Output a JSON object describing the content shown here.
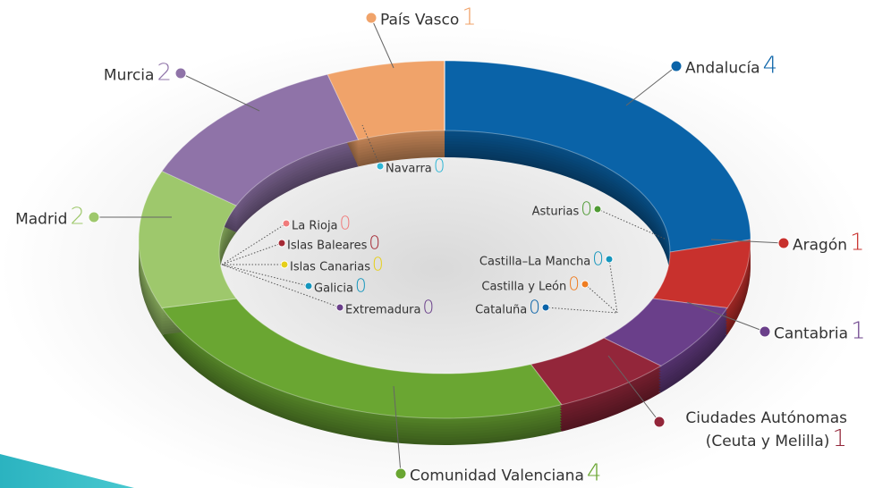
{
  "chart_data": {
    "type": "pie",
    "categories": [
      "Andalucía",
      "Aragón",
      "Cantabria",
      "Ciudades Autónomas (Ceuta y Melilla)",
      "Comunidad Valenciana",
      "Madrid",
      "Murcia",
      "País Vasco",
      "Navarra",
      "Asturias",
      "Castilla–La Mancha",
      "Castilla y León",
      "Cataluña",
      "La Rioja",
      "Islas Baleares",
      "Islas Canarias",
      "Galicia",
      "Extremadura"
    ],
    "values": [
      4,
      1,
      1,
      1,
      4,
      2,
      2,
      1,
      0,
      0,
      0,
      0,
      0,
      0,
      0,
      0,
      0,
      0
    ],
    "colors": [
      "#0a63a8",
      "#c8312d",
      "#6a3f8a",
      "#93263a",
      "#6aa632",
      "#9ec86c",
      "#8f73a8",
      "#f0a36a",
      "#2fb7d6",
      "#4f9a34",
      "#1596bd",
      "#ef7d22",
      "#0a63a8",
      "#f07b7b",
      "#a52a35",
      "#e6cf1a",
      "#1596bd",
      "#6a3f8a"
    ]
  }
}
